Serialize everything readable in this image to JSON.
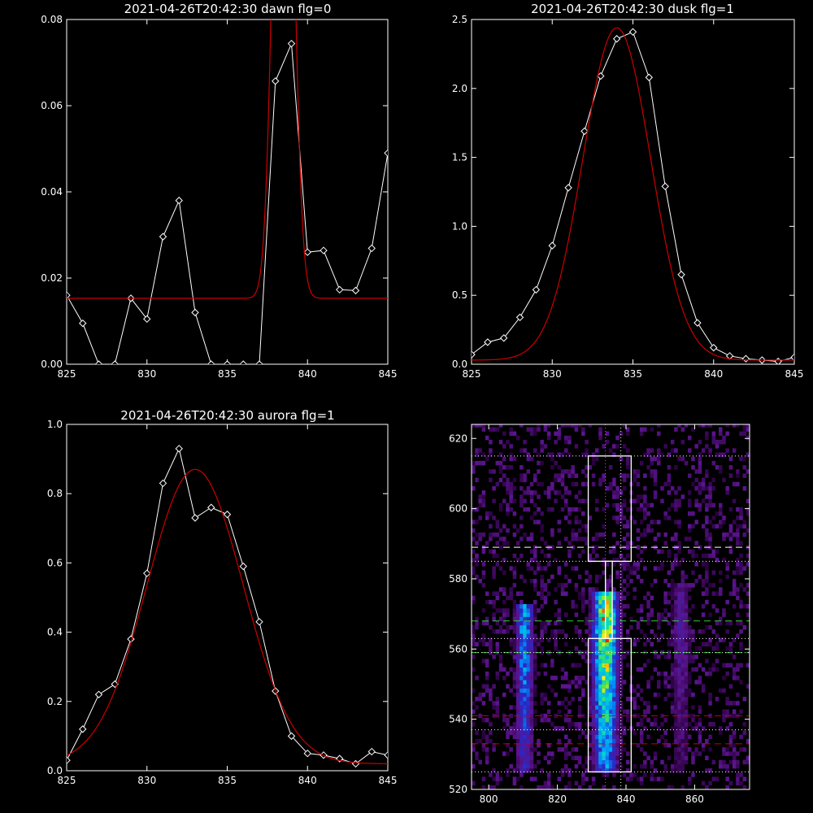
{
  "chart_data": [
    {
      "type": "line",
      "title": "2021-04-26T20:42:30 dawn flg=0",
      "xlim": [
        825,
        845
      ],
      "ylim": [
        0,
        0.08
      ],
      "xticks": [
        825,
        830,
        835,
        840,
        845
      ],
      "yticks": [
        0.0,
        0.02,
        0.04,
        0.06,
        0.08
      ],
      "ytick_labels": [
        "0.00",
        "0.02",
        "0.04",
        "0.06",
        "0.08"
      ],
      "series": [
        {
          "color": "#ffffff",
          "marker": "diamond",
          "x": [
            825,
            826,
            827,
            828,
            829,
            830,
            831,
            832,
            833,
            834,
            835,
            836,
            837,
            838,
            839,
            840,
            841,
            842,
            843,
            844,
            845
          ],
          "y": [
            0.016,
            0.0095,
            0.0,
            0.0,
            0.0153,
            0.0105,
            0.0296,
            0.038,
            0.012,
            0.0,
            0.0,
            0.0,
            0.0,
            0.0657,
            0.0744,
            0.026,
            0.0264,
            0.0173,
            0.0171,
            0.0269,
            0.049
          ]
        },
        {
          "color": "#cc0000",
          "kind": "gaussian-fit",
          "baseline": 0.0153,
          "amplitude": 0.18,
          "center": 838.5,
          "sigma": 0.55
        }
      ]
    },
    {
      "type": "line",
      "title": "2021-04-26T20:42:30 dusk flg=1",
      "xlim": [
        825,
        845
      ],
      "ylim": [
        0,
        2.5
      ],
      "xticks": [
        825,
        830,
        835,
        840,
        845
      ],
      "yticks": [
        0.0,
        0.5,
        1.0,
        1.5,
        2.0,
        2.5
      ],
      "ytick_labels": [
        "0.0",
        "0.5",
        "1.0",
        "1.5",
        "2.0",
        "2.5"
      ],
      "series": [
        {
          "color": "#ffffff",
          "marker": "diamond",
          "x": [
            825,
            826,
            827,
            828,
            829,
            830,
            831,
            832,
            833,
            834,
            835,
            836,
            837,
            838,
            839,
            840,
            841,
            842,
            843,
            844,
            845
          ],
          "y": [
            0.07,
            0.16,
            0.19,
            0.34,
            0.54,
            0.86,
            1.28,
            1.69,
            2.09,
            2.36,
            2.41,
            2.08,
            1.29,
            0.65,
            0.3,
            0.12,
            0.06,
            0.04,
            0.03,
            0.02,
            0.05
          ]
        },
        {
          "color": "#cc0000",
          "kind": "gaussian-fit",
          "baseline": 0.03,
          "amplitude": 2.41,
          "center": 834.0,
          "sigma": 2.1
        }
      ]
    },
    {
      "type": "line",
      "title": "2021-04-26T20:42:30 aurora flg=1",
      "xlim": [
        825,
        845
      ],
      "ylim": [
        0,
        1.0
      ],
      "xticks": [
        825,
        830,
        835,
        840,
        845
      ],
      "yticks": [
        0.0,
        0.2,
        0.4,
        0.6,
        0.8,
        1.0
      ],
      "ytick_labels": [
        "0.0",
        "0.2",
        "0.4",
        "0.6",
        "0.8",
        "1.0"
      ],
      "series": [
        {
          "color": "#ffffff",
          "marker": "diamond",
          "x": [
            825,
            826,
            827,
            828,
            829,
            830,
            831,
            832,
            833,
            834,
            835,
            836,
            837,
            838,
            839,
            840,
            841,
            842,
            843,
            844,
            845
          ],
          "y": [
            0.03,
            0.12,
            0.22,
            0.25,
            0.38,
            0.57,
            0.83,
            0.93,
            0.73,
            0.76,
            0.74,
            0.59,
            0.43,
            0.23,
            0.1,
            0.05,
            0.045,
            0.035,
            0.02,
            0.055,
            0.045
          ]
        },
        {
          "color": "#cc0000",
          "kind": "gaussian-fit",
          "baseline": 0.02,
          "amplitude": 0.85,
          "center": 833.0,
          "sigma": 3.0
        }
      ]
    },
    {
      "type": "heatmap",
      "title": "",
      "xlim": [
        795,
        876
      ],
      "ylim": [
        520,
        624
      ],
      "xticks": [
        800,
        820,
        840,
        860
      ],
      "yticks": [
        520,
        540,
        560,
        580,
        600,
        620
      ],
      "columns_bright": [
        {
          "center": 810.5,
          "width": 5,
          "ymin": 524,
          "ymax": 572,
          "peak": 0.55
        },
        {
          "center": 834,
          "width": 7,
          "ymin": 524,
          "ymax": 576,
          "peak": 1.0
        },
        {
          "center": 856,
          "width": 6,
          "ymin": 524,
          "ymax": 578,
          "peak": 0.22
        }
      ],
      "boxes": [
        {
          "x": [
            829,
            841.5
          ],
          "y": [
            585,
            615
          ]
        },
        {
          "x": [
            829,
            841.5
          ],
          "y": [
            525,
            563
          ]
        },
        {
          "x": [
            834,
            836
          ],
          "y": [
            563,
            585
          ]
        }
      ],
      "hlines": [
        {
          "y": 615,
          "color": "#ffffff",
          "style": "dotted"
        },
        {
          "y": 589,
          "color": "#ffffff",
          "style": "dashed"
        },
        {
          "y": 585,
          "color": "#ffffff",
          "style": "dotted"
        },
        {
          "y": 568,
          "color": "#33cc33",
          "style": "dashed"
        },
        {
          "y": 563,
          "color": "#ffffff",
          "style": "dotted"
        },
        {
          "y": 559,
          "color": "#33cc33",
          "style": "dashed"
        },
        {
          "y": 559,
          "color": "#ffffff",
          "style": "dotted"
        },
        {
          "y": 541,
          "color": "#cc0000",
          "style": "dashed"
        },
        {
          "y": 537,
          "color": "#ffffff",
          "style": "dotted"
        },
        {
          "y": 533,
          "color": "#cc0000",
          "style": "dashed"
        },
        {
          "y": 525,
          "color": "#ffffff",
          "style": "dotted"
        }
      ],
      "vlines": [
        {
          "x": 834,
          "color": "#ff33ff",
          "style": "dotted"
        },
        {
          "x": 838.5,
          "color": "#ffffff",
          "style": "dotted"
        }
      ]
    }
  ]
}
